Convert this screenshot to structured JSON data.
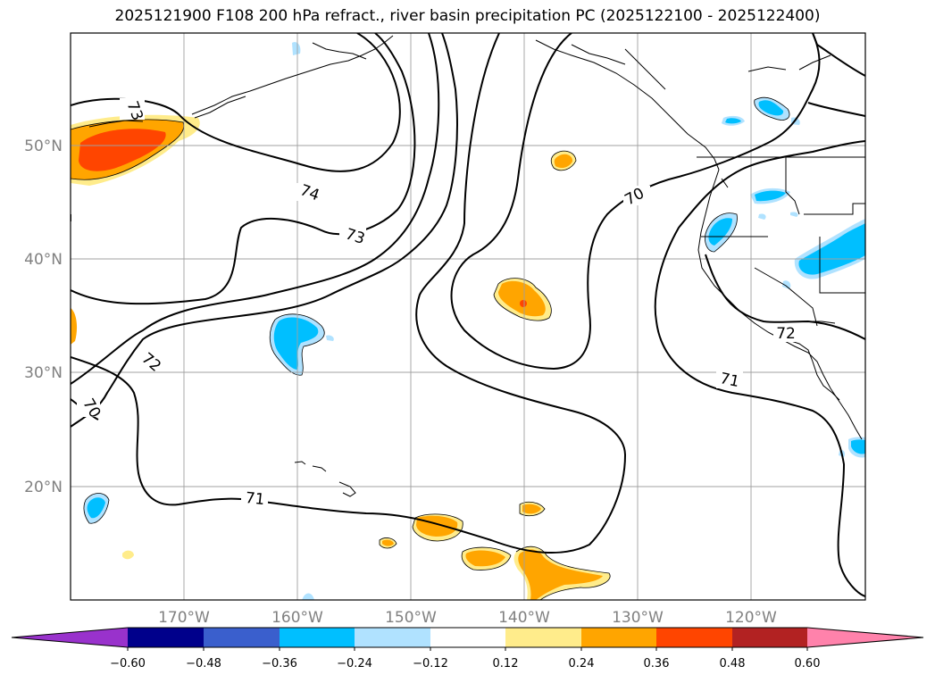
{
  "title": "2025121900 F108 200 hPa refract., river basin precipitation PC (2025122100 - 2025122400)",
  "map": {
    "lat_labels": [
      "50°N",
      "40°N",
      "30°N",
      "20°N"
    ],
    "lon_labels": [
      "170°W",
      "160°W",
      "150°W",
      "140°W",
      "130°W",
      "120°W"
    ],
    "contour_labels": [
      "73",
      "74",
      "73",
      "72",
      "70",
      "70",
      "71",
      "71",
      "72"
    ]
  },
  "colorbar": {
    "colors": [
      "#9932cc",
      "#00008b",
      "#3a5fcd",
      "#00bfff",
      "#b0e2ff",
      "#ffffff",
      "#ffec8b",
      "#ffa500",
      "#ff4500",
      "#b22222",
      "#ff82ab"
    ],
    "tick_labels": [
      "−0.60",
      "−0.48",
      "−0.36",
      "−0.24",
      "−0.12",
      "0.12",
      "0.24",
      "0.36",
      "0.48",
      "0.60"
    ]
  }
}
